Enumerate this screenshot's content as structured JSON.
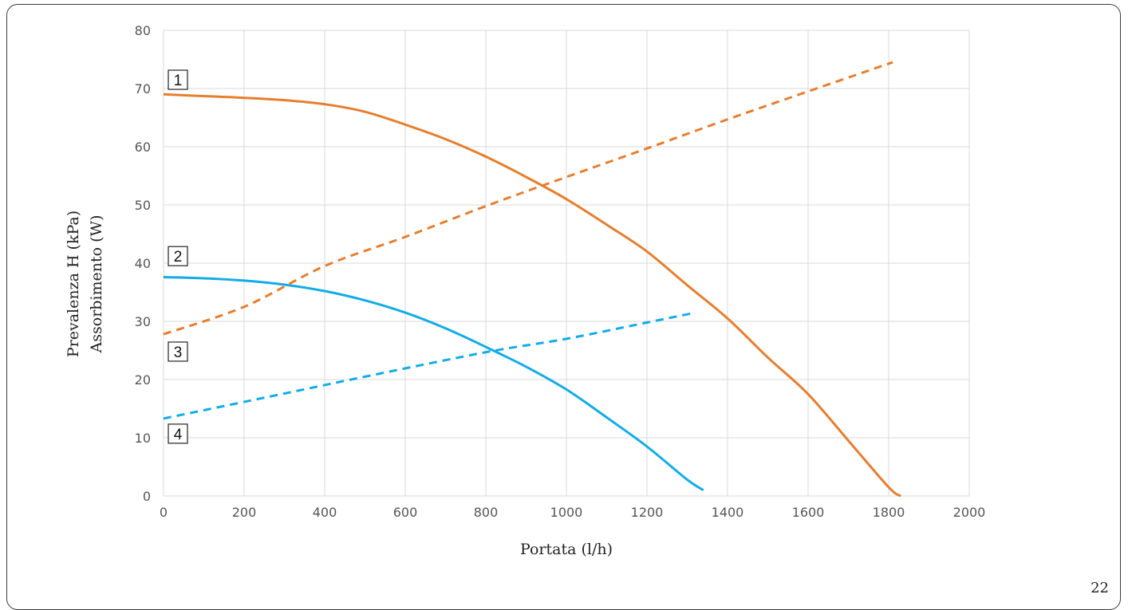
{
  "page_number": "22",
  "colors": {
    "orange": "#E67E2E",
    "blue": "#12ACE6",
    "grid": "#D9D9D9"
  },
  "chart_data": {
    "type": "line",
    "xlabel": "Portata (l/h)",
    "ylabel": [
      "Prevalenza H (kPa)",
      "Assorbimento (W)"
    ],
    "xlim": [
      0,
      2000
    ],
    "ylim": [
      0,
      80
    ],
    "xticks": [
      "0",
      "200",
      "400",
      "600",
      "800",
      "1000",
      "1200",
      "1400",
      "1600",
      "1800",
      "2000"
    ],
    "yticks": [
      "0",
      "10",
      "20",
      "30",
      "40",
      "50",
      "60",
      "70",
      "80"
    ],
    "grid": true,
    "series": [
      {
        "name": "1",
        "color": "#E67E2E",
        "dashed": false,
        "points": [
          [
            0,
            69
          ],
          [
            100,
            68.7
          ],
          [
            200,
            68.4
          ],
          [
            300,
            68
          ],
          [
            400,
            67.3
          ],
          [
            500,
            66
          ],
          [
            600,
            63.8
          ],
          [
            700,
            61.3
          ],
          [
            800,
            58.3
          ],
          [
            900,
            54.8
          ],
          [
            1000,
            51
          ],
          [
            1100,
            46.6
          ],
          [
            1200,
            42
          ],
          [
            1300,
            36.2
          ],
          [
            1400,
            30.5
          ],
          [
            1500,
            23.8
          ],
          [
            1600,
            17.5
          ],
          [
            1700,
            9.5
          ],
          [
            1800,
            1.5
          ],
          [
            1830,
            0
          ]
        ]
      },
      {
        "name": "2",
        "color": "#12ACE6",
        "dashed": false,
        "points": [
          [
            0,
            37.6
          ],
          [
            100,
            37.4
          ],
          [
            200,
            37
          ],
          [
            300,
            36.3
          ],
          [
            400,
            35.2
          ],
          [
            500,
            33.6
          ],
          [
            600,
            31.5
          ],
          [
            700,
            28.8
          ],
          [
            800,
            25.6
          ],
          [
            900,
            22.2
          ],
          [
            1000,
            18.3
          ],
          [
            1100,
            13.5
          ],
          [
            1200,
            8.5
          ],
          [
            1300,
            2.8
          ],
          [
            1340,
            1
          ]
        ]
      },
      {
        "name": "3",
        "color": "#E67E2E",
        "dashed": true,
        "points": [
          [
            0,
            27.8
          ],
          [
            200,
            32.5
          ],
          [
            400,
            39.5
          ],
          [
            600,
            44.5
          ],
          [
            800,
            49.8
          ],
          [
            1000,
            54.8
          ],
          [
            1200,
            59.7
          ],
          [
            1400,
            64.7
          ],
          [
            1600,
            69.5
          ],
          [
            1810,
            74.5
          ]
        ]
      },
      {
        "name": "4",
        "color": "#12ACE6",
        "dashed": true,
        "points": [
          [
            0,
            13.3
          ],
          [
            300,
            17.6
          ],
          [
            500,
            20.5
          ],
          [
            800,
            24.7
          ],
          [
            1000,
            27
          ],
          [
            1200,
            29.8
          ],
          [
            1320,
            31.5
          ]
        ]
      }
    ],
    "curve_labels": [
      {
        "text": "1",
        "y": 71.5
      },
      {
        "text": "2",
        "y": 41.2
      },
      {
        "text": "3",
        "y": 24.8
      },
      {
        "text": "4",
        "y": 10.7
      }
    ]
  }
}
